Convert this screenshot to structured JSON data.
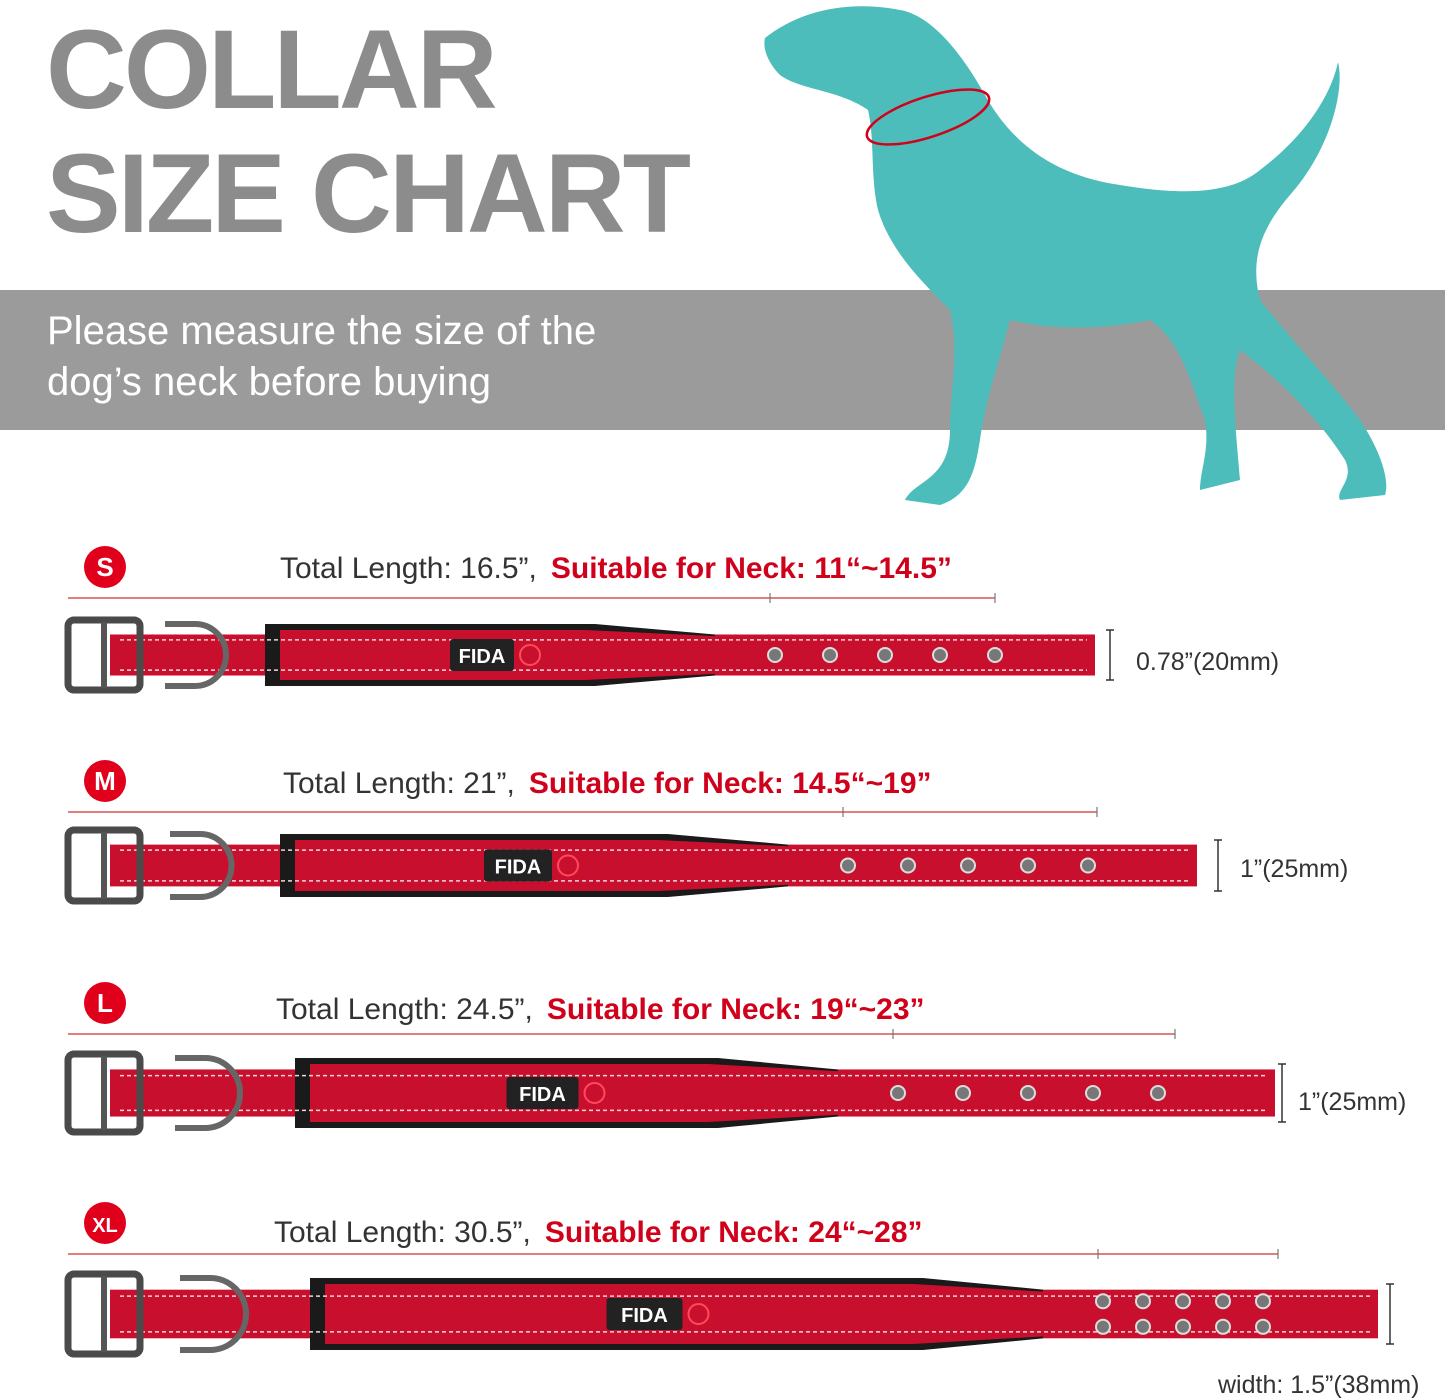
{
  "header": {
    "title_lines": [
      "COLLAR",
      "SIZE CHART"
    ],
    "subtitle_lines": [
      "Please measure the size of the",
      "dog’s neck before buying"
    ]
  },
  "brand": "FIDA",
  "sizes": [
    {
      "badge": "S",
      "total_length": "Total Length: 16.5”,",
      "neck": "Suitable for Neck: 11“~14.5”",
      "width": "0.78”(20mm)"
    },
    {
      "badge": "M",
      "total_length": "Total Length: 21”,",
      "neck": "Suitable for Neck: 14.5“~19”",
      "width": "1”(25mm)"
    },
    {
      "badge": "L",
      "total_length": "Total Length: 24.5”,",
      "neck": "Suitable for Neck: 19“~23”",
      "width": "1”(25mm)"
    },
    {
      "badge": "XL",
      "total_length": "Total Length: 30.5”,",
      "neck": "Suitable for Neck: 24“~28”",
      "width": "width: 1.5”(38mm)"
    }
  ]
}
